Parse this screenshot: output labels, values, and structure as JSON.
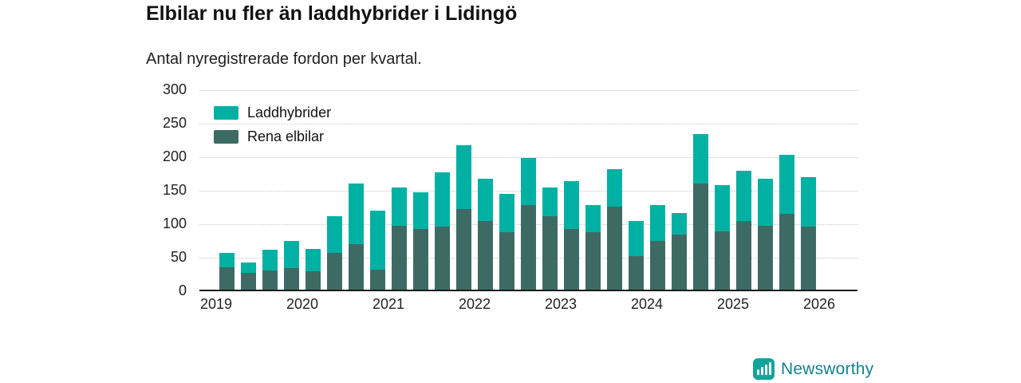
{
  "header": {
    "title": "Elbilar nu fler än laddhybrider i Lidingö",
    "subtitle": "Antal nyregistrerade fordon per kvartal."
  },
  "footer": {
    "brand": "Newsworthy"
  },
  "colors": {
    "laddhybrider": "#00b1a3",
    "rena_elbilar": "#3d6b64",
    "brand_text": "#17808d",
    "brand_icon": "#12a49a",
    "axis_line": "#1a1a1a"
  },
  "chart_data": {
    "type": "bar",
    "stacked": true,
    "title": "Elbilar nu fler än laddhybrider i Lidingö",
    "subtitle": "Antal nyregistrerade fordon per kvartal.",
    "categories": [
      "2019 K1",
      "2019 K2",
      "2019 K3",
      "2019 K4",
      "2020 K1",
      "2020 K2",
      "2020 K3",
      "2020 K4",
      "2021 K1",
      "2021 K2",
      "2021 K3",
      "2021 K4",
      "2022 K1",
      "2022 K2",
      "2022 K3",
      "2022 K4",
      "2023 K1",
      "2023 K2",
      "2023 K3",
      "2023 K4",
      "2024 K1",
      "2024 K2",
      "2024 K3",
      "2024 K4",
      "2025 K1",
      "2025 K2",
      "2025 K3",
      "2025 K4"
    ],
    "series": [
      {
        "name": "Laddhybrider",
        "color": "#00b1a3",
        "values": [
          22,
          15,
          30,
          41,
          34,
          54,
          90,
          88,
          57,
          55,
          81,
          96,
          64,
          57,
          70,
          43,
          72,
          40,
          56,
          53,
          53,
          32,
          74,
          69,
          76,
          71,
          88,
          74
        ]
      },
      {
        "name": "Rena elbilar",
        "color": "#3d6b64",
        "values": [
          33,
          25,
          29,
          32,
          27,
          55,
          68,
          30,
          95,
          90,
          94,
          120,
          102,
          86,
          126,
          110,
          90,
          86,
          124,
          50,
          73,
          82,
          158,
          87,
          102,
          95,
          113,
          94
        ]
      }
    ],
    "totals": [
      55,
      40,
      59,
      73,
      61,
      109,
      158,
      118,
      152,
      145,
      175,
      216,
      166,
      143,
      196,
      153,
      162,
      126,
      180,
      103,
      126,
      114,
      232,
      156,
      178,
      166,
      201,
      168
    ],
    "y_axis": {
      "min": 0,
      "max": 300,
      "tick_step": 50,
      "ticks": [
        0,
        50,
        100,
        150,
        200,
        250,
        300
      ]
    },
    "x_axis": {
      "tick_labels": [
        "2019",
        "2020",
        "2021",
        "2022",
        "2023",
        "2024",
        "2025",
        "2026"
      ]
    },
    "legend_position": "top-left",
    "grid": true
  }
}
